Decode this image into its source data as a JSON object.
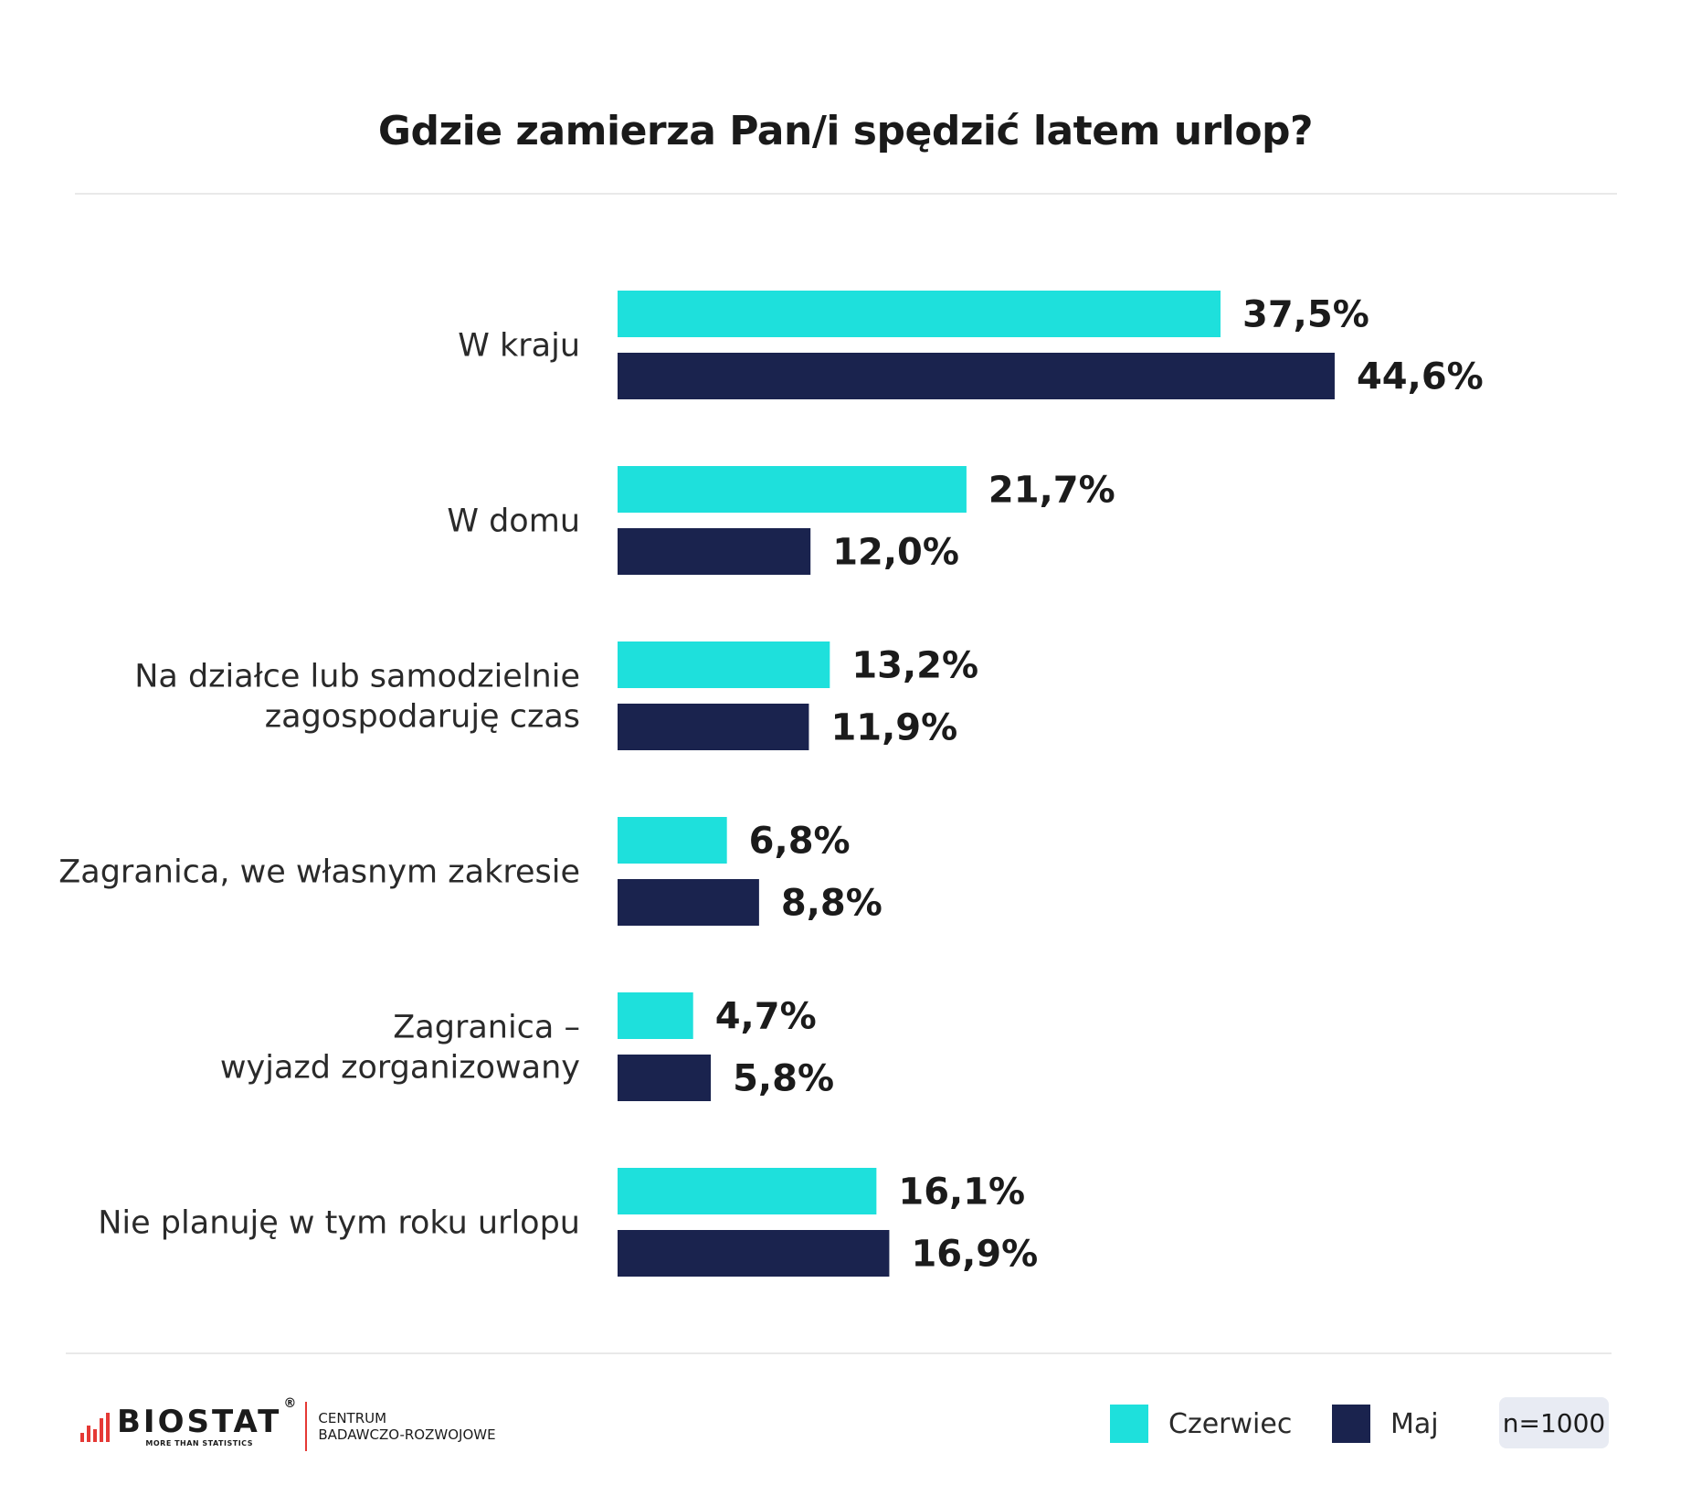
{
  "chart_data": {
    "type": "bar",
    "orientation": "horizontal",
    "title": "Gdzie zamierza Pan/i spędzić latem urlop?",
    "categories": [
      [
        "W kraju"
      ],
      [
        "W domu"
      ],
      [
        "Na działce lub samodzielnie",
        "zagospodaruję czas"
      ],
      [
        "Zagranica, we własnym zakresie"
      ],
      [
        "Zagranica –",
        "wyjazd zorganizowany"
      ],
      [
        "Nie planuję w tym roku urlopu"
      ]
    ],
    "series": [
      {
        "name": "Czerwiec",
        "color": "#1ee0dc",
        "values": [
          37.5,
          21.7,
          13.2,
          6.8,
          4.7,
          16.1
        ],
        "labels": [
          "37,5%",
          "21,7%",
          "13,2%",
          "6,8%",
          "4,7%",
          "16,1%"
        ]
      },
      {
        "name": "Maj",
        "color": "#1a234e",
        "values": [
          44.6,
          12.0,
          11.9,
          8.8,
          5.8,
          16.9
        ],
        "labels": [
          "44,6%",
          "12,0%",
          "11,9%",
          "8,8%",
          "5,8%",
          "16,9%"
        ]
      }
    ],
    "xlim": [
      0,
      50
    ],
    "axis_visible": false,
    "grid": false,
    "legend_position": "bottom-right"
  },
  "legend": {
    "items": [
      {
        "label": "Czerwiec",
        "color": "#1ee0dc"
      },
      {
        "label": "Maj",
        "color": "#1a234e"
      }
    ]
  },
  "sample_note": "n=1000",
  "logo": {
    "word": "BIOSTAT",
    "registered": "®",
    "tagline": "MORE THAN STATISTICS",
    "sub_line1": "CENTRUM",
    "sub_line2": "BADAWCZO-ROZWOJOWE",
    "accent_color": "#e53935"
  }
}
